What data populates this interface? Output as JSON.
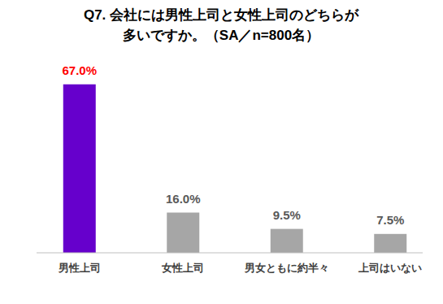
{
  "chart_data": {
    "type": "bar",
    "title": [
      "Q7. 会社には男性上司と女性上司のどちらが",
      "多いですか。（SA／n=800名）"
    ],
    "categories": [
      "男性上司",
      "女性上司",
      "男女ともに約半々",
      "上司はいない"
    ],
    "values": [
      67.0,
      16.0,
      9.5,
      7.5
    ],
    "value_labels": [
      "67.0%",
      "16.0%",
      "9.5%",
      "7.5%"
    ],
    "colors": [
      "#6600cc",
      "#a6a6a6",
      "#a6a6a6",
      "#a6a6a6"
    ],
    "ylim": [
      0,
      75
    ],
    "data_labels": true,
    "tick_labels": "x",
    "grid": false
  }
}
